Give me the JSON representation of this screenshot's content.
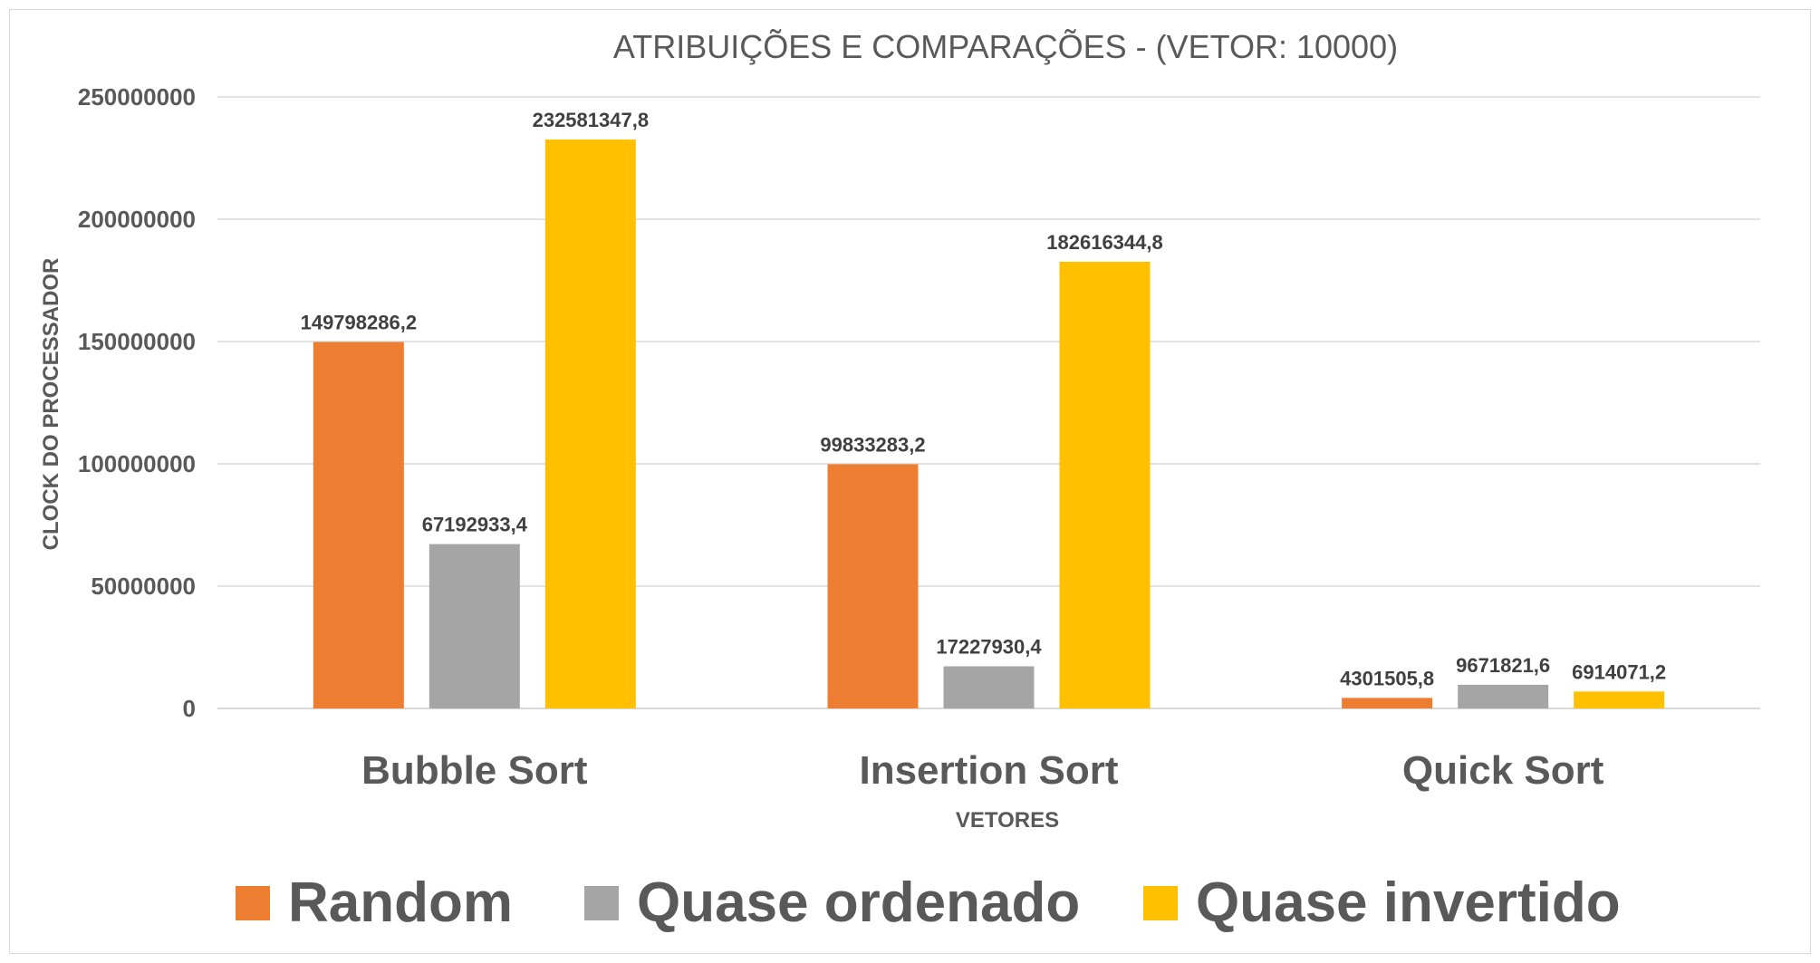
{
  "chart_data": {
    "type": "bar",
    "title": "ATRIBUIÇÕES E COMPARAÇÕES - (VETOR: 10000)",
    "xlabel": "VETORES",
    "ylabel": "CLOCK DO PROCESSADOR",
    "categories": [
      "Bubble Sort",
      "Insertion Sort",
      "Quick Sort"
    ],
    "series": [
      {
        "name": "Random",
        "color": "#ED7D31",
        "values": [
          149798286.2,
          99833283.2,
          4301505.8
        ],
        "labels": [
          "149798286,2",
          "99833283,2",
          "4301505,8"
        ]
      },
      {
        "name": "Quase ordenado",
        "color": "#A5A5A5",
        "values": [
          67192933.4,
          17227930.4,
          9671821.6
        ],
        "labels": [
          "67192933,4",
          "17227930,4",
          "9671821,6"
        ]
      },
      {
        "name": "Quase invertido",
        "color": "#FFC000",
        "values": [
          232581347.8,
          182616344.8,
          6914071.2
        ],
        "labels": [
          "232581347,8",
          "182616344,8",
          "6914071,2"
        ]
      }
    ],
    "ylim": [
      0,
      250000000
    ],
    "yticks": [
      "0",
      "50000000",
      "100000000",
      "150000000",
      "200000000",
      "250000000"
    ],
    "grid": true,
    "legend_position": "bottom"
  }
}
